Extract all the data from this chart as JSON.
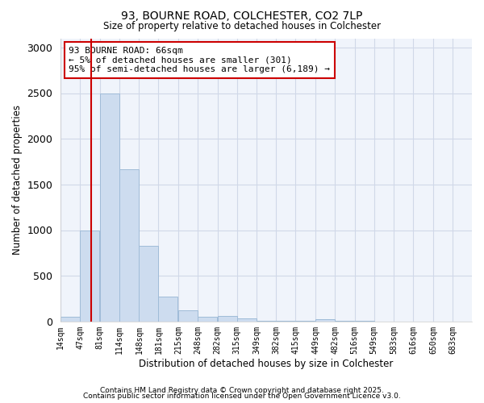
{
  "title1": "93, BOURNE ROAD, COLCHESTER, CO2 7LP",
  "title2": "Size of property relative to detached houses in Colchester",
  "xlabel": "Distribution of detached houses by size in Colchester",
  "ylabel": "Number of detached properties",
  "bin_labels": [
    "14sqm",
    "47sqm",
    "81sqm",
    "114sqm",
    "148sqm",
    "181sqm",
    "215sqm",
    "248sqm",
    "282sqm",
    "315sqm",
    "349sqm",
    "382sqm",
    "415sqm",
    "449sqm",
    "482sqm",
    "516sqm",
    "549sqm",
    "583sqm",
    "616sqm",
    "650sqm",
    "683sqm"
  ],
  "bin_edges": [
    14,
    47,
    81,
    114,
    148,
    181,
    215,
    248,
    282,
    315,
    349,
    382,
    415,
    449,
    482,
    516,
    549,
    583,
    616,
    650,
    683
  ],
  "bar_heights": [
    50,
    1000,
    2500,
    1670,
    830,
    270,
    120,
    50,
    60,
    35,
    5,
    5,
    5,
    25,
    5,
    3,
    2,
    2,
    2,
    2,
    2
  ],
  "bar_color": "#cddcef",
  "bar_edge_color": "#a0bcd8",
  "red_line_x": 66,
  "annotation_text": "93 BOURNE ROAD: 66sqm\n← 5% of detached houses are smaller (301)\n95% of semi-detached houses are larger (6,189) →",
  "annotation_box_color": "#ffffff",
  "annotation_box_edge_color": "#cc0000",
  "ylim": [
    0,
    3100
  ],
  "yticks": [
    0,
    500,
    1000,
    1500,
    2000,
    2500,
    3000
  ],
  "background_color": "#ffffff",
  "plot_bg_color": "#f0f4fb",
  "grid_color": "#d0d8e8",
  "footnote1": "Contains HM Land Registry data © Crown copyright and database right 2025.",
  "footnote2": "Contains public sector information licensed under the Open Government Licence v3.0."
}
